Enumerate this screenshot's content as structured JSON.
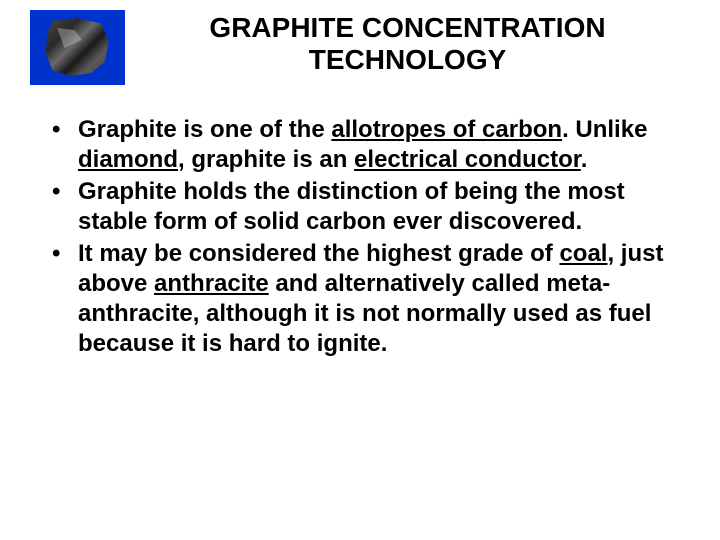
{
  "title_line1": "GRAPHITE CONCENTRATION",
  "title_line2": "TECHNOLOGY",
  "bullets": [
    {
      "segments": [
        {
          "t": "Graphite is one of the "
        },
        {
          "t": "allotropes of carbon",
          "link": true
        },
        {
          "t": ". Unlike "
        },
        {
          "t": "diamond",
          "link": true
        },
        {
          "t": ", graphite is an "
        },
        {
          "t": "electrical conductor",
          "link": true
        },
        {
          "t": "."
        }
      ]
    },
    {
      "segments": [
        {
          "t": "Graphite holds the distinction of being the most stable form of solid carbon ever discovered."
        }
      ]
    },
    {
      "segments": [
        {
          "t": "It may be considered the highest grade of "
        },
        {
          "t": "coal",
          "link": true
        },
        {
          "t": ", just above "
        },
        {
          "t": "anthracite",
          "link": true
        },
        {
          "t": " and alternatively called meta-anthracite, although it is not normally used as fuel because it is hard to ignite."
        }
      ]
    }
  ]
}
